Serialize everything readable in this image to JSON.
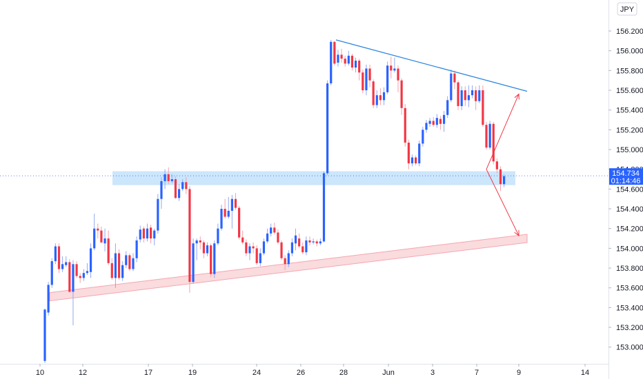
{
  "chart_data": {
    "type": "candlestick",
    "instrument_currency": "JPY",
    "y_axis": {
      "side": "right",
      "ticks": [
        "153.000",
        "153.200",
        "153.400",
        "153.600",
        "153.800",
        "154.000",
        "154.200",
        "154.400",
        "154.600",
        "154.800",
        "155.000",
        "155.200",
        "155.400",
        "155.600",
        "155.800",
        "156.000",
        "156.200"
      ],
      "ylim": [
        152.9,
        156.4
      ]
    },
    "x_axis": {
      "ticks": [
        "10",
        "12",
        "17",
        "19",
        "24",
        "26",
        "28",
        "Jun",
        "3",
        "7",
        "9",
        "14"
      ]
    },
    "price_tag": {
      "price": "154.734",
      "countdown": "01:14:46"
    },
    "grid": false,
    "colors": {
      "up": "#2962FF",
      "down": "#F23645",
      "wick_up": "#90A8F0",
      "wick_down": "#F4A0A8",
      "zone_blue": "#BBDEFB",
      "zone_red": "#F8C8CC",
      "trendline": "#2E86DE",
      "projection_arrow": "#F23645",
      "axis_text": "#131722",
      "price_tag_bg": "#2962FF"
    },
    "annotations": {
      "support_resistance_zone": {
        "from_price": 154.64,
        "to_price": 154.78
      },
      "rising_channel_zone": {
        "start": {
          "day": "10",
          "price": 153.51
        },
        "end": {
          "day": "9",
          "price": 154.1
        }
      },
      "descending_trendline": {
        "start": {
          "day": "27",
          "price": 156.11
        },
        "end": {
          "day": "9",
          "price": 155.59
        }
      },
      "scenario_up_arrow_target": 155.59,
      "scenario_down_arrow_target": 154.1
    },
    "series": [
      {
        "candles": [
          [
            152.86,
            153.38,
            152.84,
            153.39
          ],
          [
            153.35,
            153.63,
            153.32,
            153.66
          ],
          [
            153.63,
            153.87,
            153.6,
            153.9
          ],
          [
            153.87,
            154.02,
            153.84,
            154.05
          ],
          [
            154.02,
            153.79,
            153.75,
            154.05
          ],
          [
            153.79,
            153.84,
            153.76,
            153.92
          ],
          [
            153.83,
            153.86,
            153.81,
            153.92
          ],
          [
            153.86,
            153.56,
            153.55,
            153.89
          ],
          [
            153.56,
            153.84,
            153.22,
            153.88
          ],
          [
            153.84,
            153.72,
            153.7,
            153.87
          ],
          [
            153.72,
            153.7,
            153.65,
            153.75
          ],
          [
            153.7,
            153.75,
            153.67,
            153.79
          ],
          [
            153.75,
            153.77,
            153.73,
            153.85
          ],
          [
            153.76,
            154.0,
            153.7,
            154.05
          ],
          [
            154.0,
            154.2,
            153.98,
            154.35
          ],
          [
            154.2,
            154.18,
            154.1,
            154.25
          ],
          [
            154.18,
            154.06,
            154.05,
            154.22
          ],
          [
            154.05,
            154.1,
            153.97,
            154.2
          ],
          [
            154.1,
            153.85,
            153.83,
            154.18
          ],
          [
            153.85,
            153.7,
            153.68,
            153.9
          ],
          [
            153.7,
            153.95,
            153.6,
            154.05
          ],
          [
            153.95,
            153.7,
            153.68,
            153.99
          ],
          [
            153.7,
            153.83,
            153.67,
            153.87
          ],
          [
            153.83,
            153.93,
            153.8,
            153.97
          ],
          [
            153.93,
            153.79,
            153.77,
            153.95
          ],
          [
            153.79,
            153.9,
            153.77,
            153.95
          ],
          [
            153.9,
            154.08,
            153.86,
            154.12
          ],
          [
            154.09,
            154.19,
            154.06,
            154.23
          ],
          [
            154.2,
            154.1,
            154.06,
            154.22
          ],
          [
            154.1,
            154.2,
            154.07,
            154.25
          ],
          [
            154.21,
            154.1,
            154.05,
            154.24
          ],
          [
            154.1,
            154.18,
            154.03,
            154.2
          ],
          [
            154.18,
            154.5,
            154.15,
            154.55
          ],
          [
            154.5,
            154.68,
            154.4,
            154.72
          ],
          [
            154.68,
            154.75,
            154.6,
            154.8
          ],
          [
            154.75,
            154.68,
            154.65,
            154.82
          ],
          [
            154.68,
            154.7,
            154.66,
            154.75
          ],
          [
            154.7,
            154.51,
            154.5,
            154.73
          ],
          [
            154.51,
            154.6,
            154.48,
            154.65
          ],
          [
            154.6,
            154.67,
            154.58,
            154.7
          ],
          [
            154.67,
            154.6,
            154.55,
            154.72
          ],
          [
            154.6,
            153.66,
            153.55,
            154.63
          ],
          [
            153.66,
            154.05,
            153.64,
            154.1
          ],
          [
            154.05,
            154.08,
            153.88,
            154.1
          ],
          [
            154.08,
            154.06,
            153.99,
            154.12
          ],
          [
            154.06,
            153.95,
            153.9,
            154.08
          ],
          [
            153.95,
            154.03,
            153.92,
            154.06
          ],
          [
            154.03,
            153.74,
            153.71,
            154.05
          ],
          [
            153.74,
            154.05,
            153.7,
            154.08
          ],
          [
            154.05,
            154.2,
            154.03,
            154.25
          ],
          [
            154.2,
            154.4,
            154.18,
            154.44
          ],
          [
            154.4,
            154.32,
            154.3,
            154.5
          ],
          [
            154.32,
            154.38,
            154.3,
            154.52
          ],
          [
            154.38,
            154.5,
            154.2,
            154.54
          ],
          [
            154.5,
            154.41,
            154.39,
            154.56
          ],
          [
            154.41,
            154.11,
            154.09,
            154.43
          ],
          [
            154.11,
            154.06,
            154.04,
            154.18
          ],
          [
            154.06,
            153.95,
            153.92,
            154.09
          ],
          [
            153.95,
            154.02,
            153.88,
            154.05
          ],
          [
            154.02,
            154.0,
            153.95,
            154.06
          ],
          [
            154.0,
            153.85,
            153.83,
            154.03
          ],
          [
            153.85,
            153.95,
            153.82,
            154.0
          ],
          [
            153.95,
            154.07,
            153.93,
            154.1
          ],
          [
            154.07,
            154.15,
            154.05,
            154.2
          ],
          [
            154.15,
            154.21,
            154.12,
            154.25
          ],
          [
            154.21,
            154.16,
            154.14,
            154.26
          ],
          [
            154.16,
            154.06,
            154.04,
            154.19
          ],
          [
            154.06,
            153.9,
            153.88,
            154.08
          ],
          [
            153.9,
            153.84,
            153.78,
            153.93
          ],
          [
            153.84,
            153.95,
            153.81,
            153.98
          ],
          [
            153.95,
            154.06,
            153.92,
            154.1
          ],
          [
            154.05,
            154.13,
            153.98,
            154.2
          ],
          [
            154.1,
            154.02,
            154.0,
            154.15
          ],
          [
            154.02,
            153.96,
            153.94,
            154.06
          ],
          [
            153.96,
            154.08,
            153.93,
            154.12
          ],
          [
            154.08,
            154.06,
            154.03,
            154.12
          ],
          [
            154.06,
            154.07,
            154.04,
            154.1
          ],
          [
            154.07,
            154.05,
            154.02,
            154.09
          ],
          [
            154.05,
            154.07,
            154.03,
            154.1
          ],
          [
            154.07,
            154.76,
            154.06,
            154.78
          ],
          [
            154.76,
            155.67,
            154.74,
            155.7
          ],
          [
            155.67,
            156.09,
            155.65,
            156.11
          ],
          [
            156.09,
            155.87,
            155.85,
            156.1
          ],
          [
            155.88,
            155.96,
            155.84,
            156.01
          ],
          [
            155.96,
            155.92,
            155.88,
            156.02
          ],
          [
            155.92,
            155.87,
            155.84,
            155.95
          ],
          [
            155.87,
            155.95,
            155.85,
            156.0
          ],
          [
            155.95,
            155.83,
            155.8,
            155.97
          ],
          [
            155.83,
            155.9,
            155.78,
            155.93
          ],
          [
            155.9,
            155.78,
            155.7,
            155.92
          ],
          [
            155.78,
            155.6,
            155.57,
            155.81
          ],
          [
            155.6,
            155.82,
            155.55,
            155.86
          ],
          [
            155.82,
            155.7,
            155.63,
            155.86
          ],
          [
            155.69,
            155.45,
            155.42,
            155.71
          ],
          [
            155.45,
            155.55,
            155.42,
            155.6
          ],
          [
            155.55,
            155.5,
            155.45,
            155.62
          ],
          [
            155.5,
            155.58,
            155.45,
            155.63
          ],
          [
            155.58,
            155.85,
            155.56,
            155.89
          ],
          [
            155.85,
            155.8,
            155.72,
            155.94
          ],
          [
            155.8,
            155.82,
            155.78,
            155.93
          ],
          [
            155.82,
            155.7,
            155.58,
            155.85
          ],
          [
            155.7,
            155.42,
            155.35,
            155.72
          ],
          [
            155.42,
            155.07,
            155.03,
            155.46
          ],
          [
            155.07,
            154.86,
            154.8,
            155.1
          ],
          [
            154.86,
            154.92,
            154.83,
            154.95
          ],
          [
            154.92,
            154.86,
            154.84,
            154.94
          ],
          [
            154.86,
            155.06,
            154.83,
            155.09
          ],
          [
            155.06,
            155.2,
            155.03,
            155.23
          ],
          [
            155.2,
            155.27,
            155.17,
            155.3
          ],
          [
            155.26,
            155.29,
            155.23,
            155.32
          ],
          [
            155.29,
            155.25,
            155.23,
            155.33
          ],
          [
            155.25,
            155.32,
            155.22,
            155.36
          ],
          [
            155.31,
            155.26,
            155.2,
            155.34
          ],
          [
            155.26,
            155.35,
            155.18,
            155.39
          ],
          [
            155.35,
            155.5,
            155.32,
            155.54
          ],
          [
            155.5,
            155.77,
            155.48,
            155.81
          ],
          [
            155.77,
            155.68,
            155.61,
            155.8
          ],
          [
            155.68,
            155.44,
            155.4,
            155.7
          ],
          [
            155.44,
            155.6,
            155.4,
            155.64
          ],
          [
            155.6,
            155.5,
            155.44,
            155.64
          ],
          [
            155.5,
            155.55,
            155.43,
            155.65
          ],
          [
            155.55,
            155.6,
            155.52,
            155.65
          ],
          [
            155.6,
            155.49,
            155.4,
            155.64
          ],
          [
            155.49,
            155.6,
            155.47,
            155.65
          ],
          [
            155.6,
            155.25,
            155.23,
            155.65
          ],
          [
            155.25,
            155.02,
            155.0,
            155.28
          ],
          [
            155.02,
            155.26,
            155.0,
            155.29
          ],
          [
            155.26,
            154.88,
            154.85,
            155.28
          ],
          [
            154.88,
            154.8,
            154.76,
            154.91
          ],
          [
            154.8,
            154.65,
            154.58,
            154.83
          ],
          [
            154.65,
            154.73,
            154.62,
            154.75
          ]
        ]
      }
    ]
  }
}
